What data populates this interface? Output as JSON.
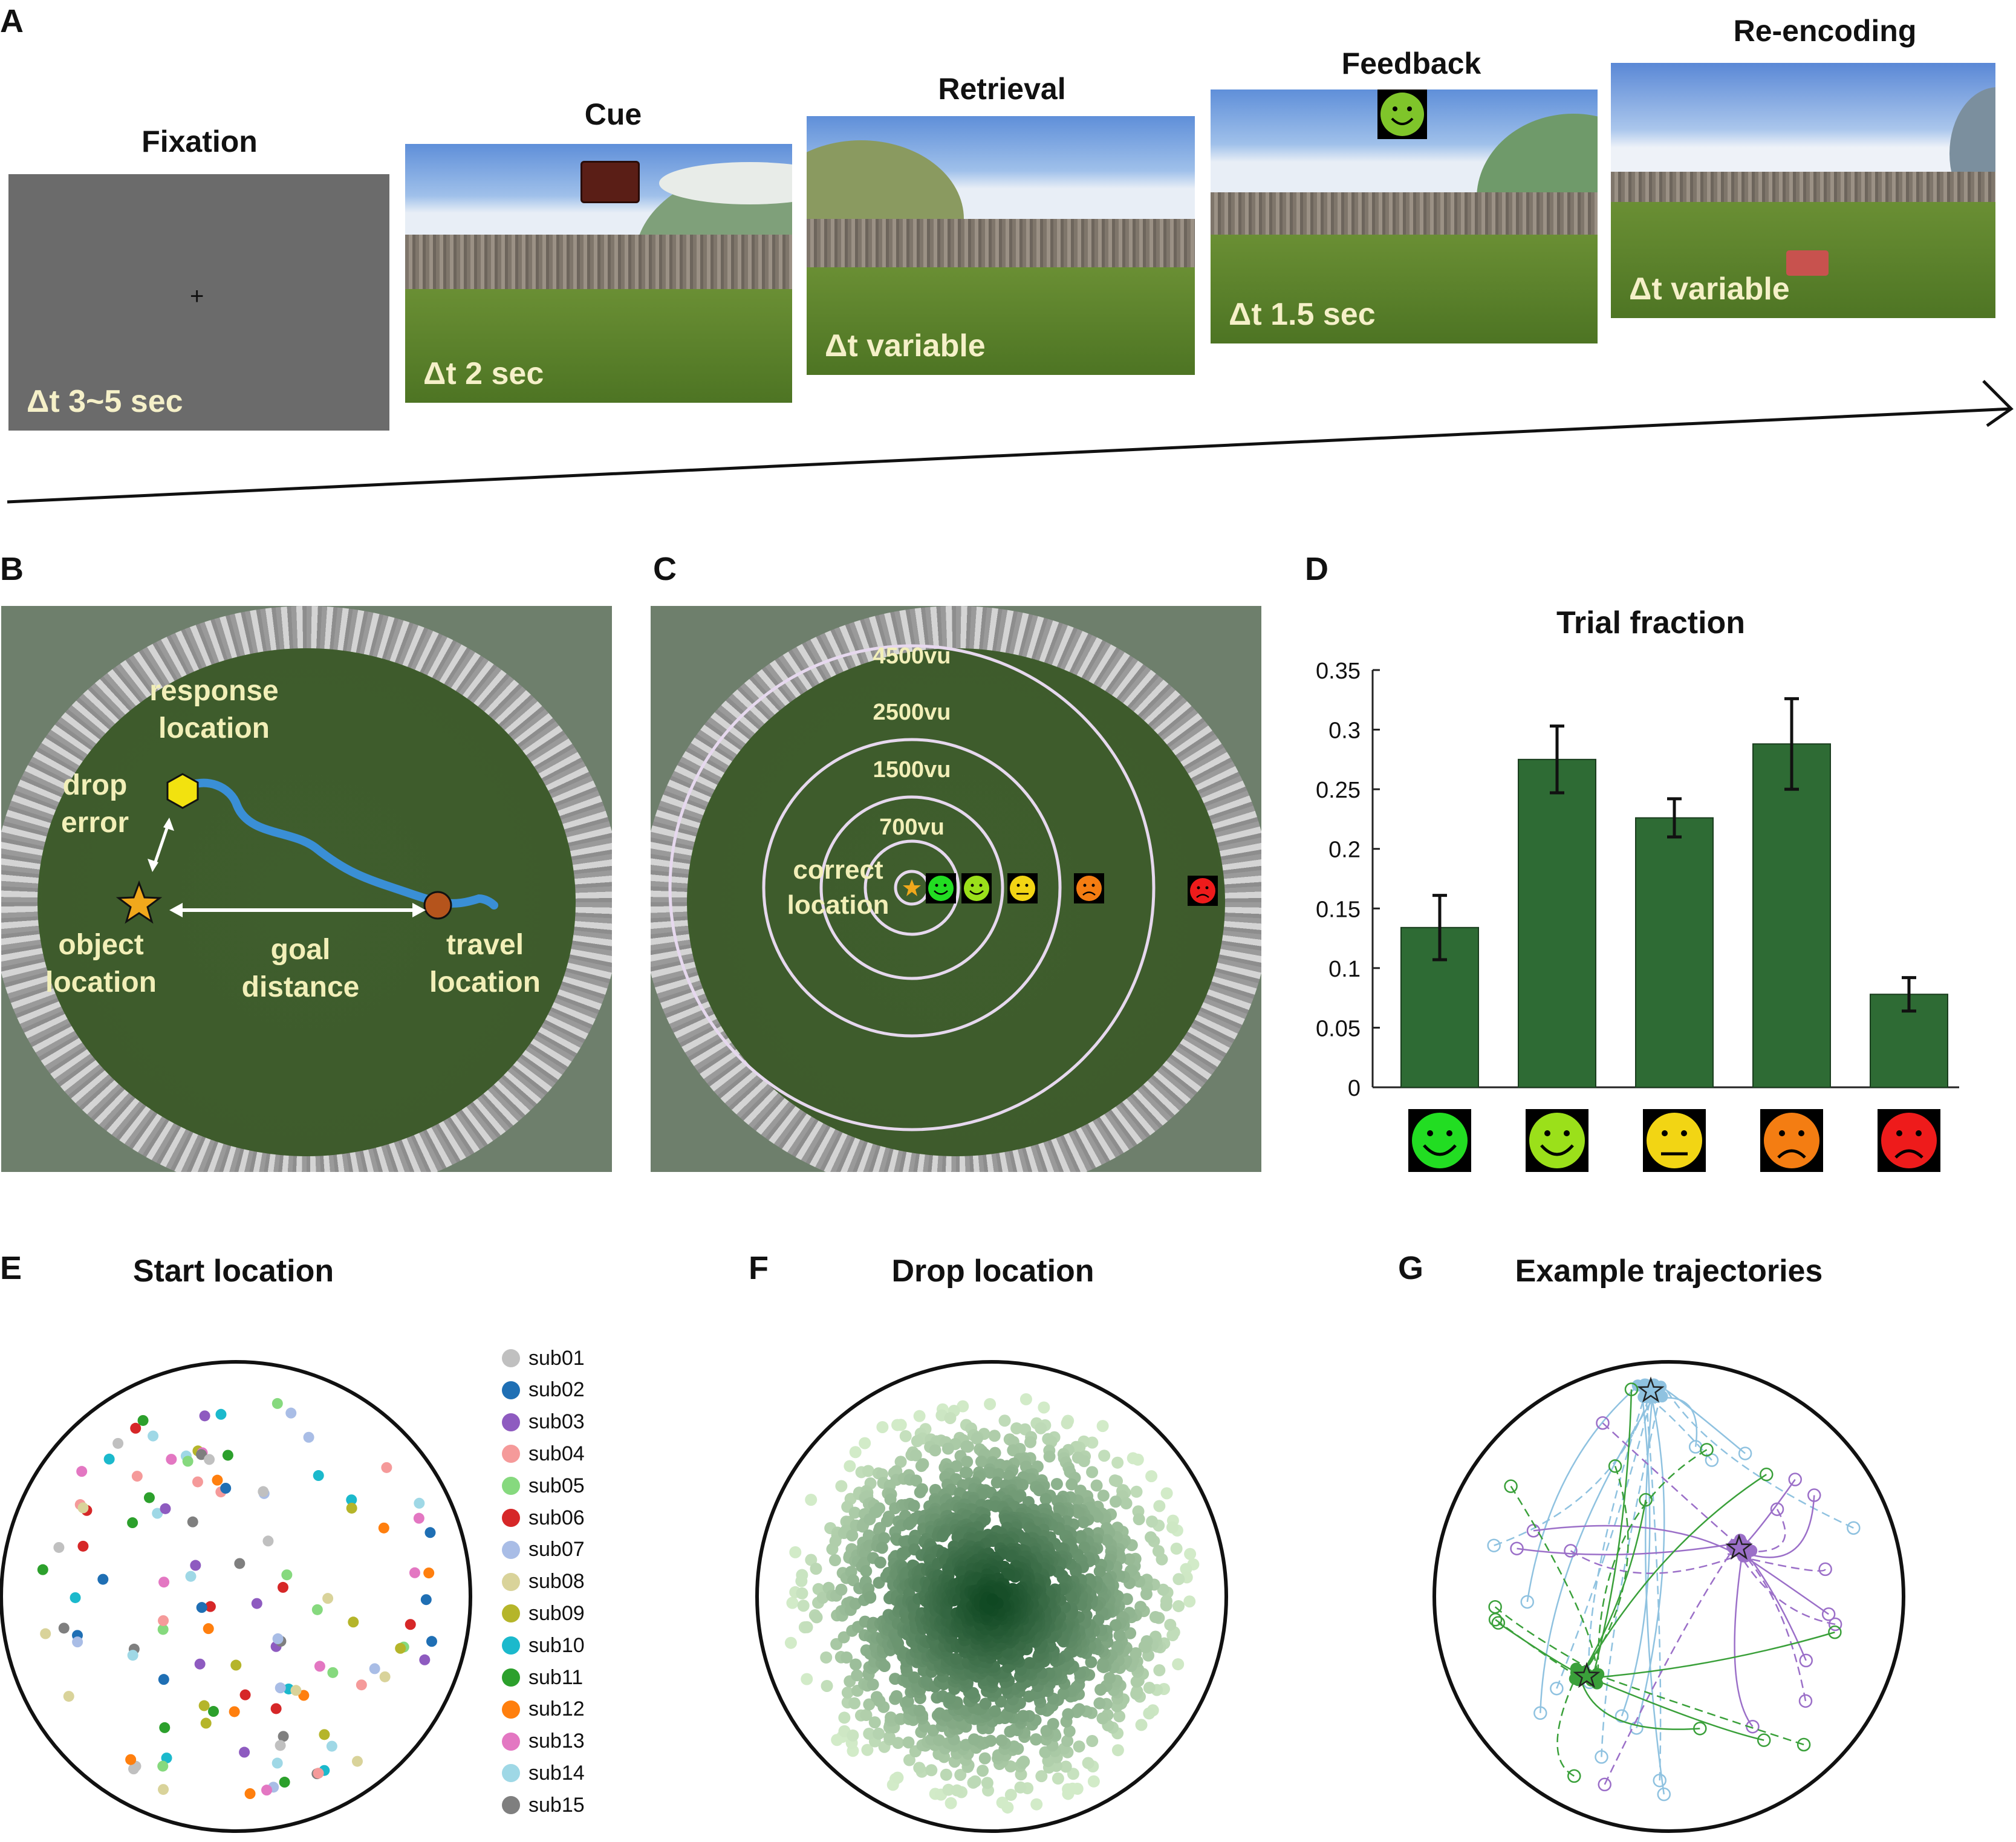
{
  "panel_letters": {
    "a": "A",
    "b": "B",
    "c": "C",
    "d": "D",
    "e": "E",
    "f": "F",
    "g": "G"
  },
  "panel_a": {
    "frames": [
      {
        "title": "Fixation",
        "duration": "Δt  3~5 sec",
        "fixation_mark": "+"
      },
      {
        "title": "Cue",
        "duration": "Δt 2 sec"
      },
      {
        "title": "Retrieval",
        "duration": "Δt  variable"
      },
      {
        "title": "Feedback",
        "duration": "Δt 1.5 sec"
      },
      {
        "title": "Re-encoding",
        "duration": "Δt  variable"
      }
    ]
  },
  "panel_b": {
    "labels": {
      "response": "response\nlocation",
      "drop": "drop\nerror",
      "object": "object\nlocation",
      "goal": "goal\ndistance",
      "travel": "travel\nlocation"
    },
    "colors": {
      "path": "#3a8fd6",
      "star": "#f0a81c",
      "hexagon": "#f2e20f",
      "travel": "#b5541c"
    }
  },
  "panel_c": {
    "ring_labels": [
      "4500vu",
      "2500vu",
      "1500vu",
      "700vu"
    ],
    "center_label": "correct\nlocation",
    "ring_color": "#e6d8ee"
  },
  "chart_data": {
    "type": "bar",
    "title": "Trial fraction",
    "categories": [
      "green-smiley-icon",
      "light-green-smiley-icon",
      "yellow-neutral-icon",
      "orange-frown-icon",
      "red-frown-icon"
    ],
    "values": [
      0.134,
      0.275,
      0.226,
      0.288,
      0.078
    ],
    "errors": [
      0.027,
      0.028,
      0.016,
      0.038,
      0.014
    ],
    "ylim": [
      0,
      0.35
    ],
    "yticks": [
      "0",
      "0.05",
      "0.1",
      "0.15",
      "0.2",
      "0.25",
      "0.3",
      "0.35"
    ],
    "bar_color": "#2e6b34",
    "face_colors": [
      "#22dd22",
      "#9be01a",
      "#f2d514",
      "#f47d12",
      "#ee1b1b"
    ]
  },
  "panel_e": {
    "title": "Start location",
    "subjects": [
      "sub01",
      "sub02",
      "sub03",
      "sub04",
      "sub05",
      "sub06",
      "sub07",
      "sub08",
      "sub09",
      "sub10",
      "sub11",
      "sub12",
      "sub13",
      "sub14",
      "sub15"
    ],
    "subject_colors": [
      "#c0c0c0",
      "#1f6fb4",
      "#8e5bc0",
      "#f59a9a",
      "#86d97e",
      "#d62728",
      "#a9bde6",
      "#d9d39a",
      "#b5b52a",
      "#1bb9cc",
      "#2ca02c",
      "#ff7f0e",
      "#e377c2",
      "#9fd8e6",
      "#7f7f7f"
    ]
  },
  "panel_f": {
    "title": "Drop location"
  },
  "panel_g": {
    "title": "Example trajectories",
    "colors": [
      "#8fc2e0",
      "#9b6fc8",
      "#3aa03a"
    ]
  }
}
